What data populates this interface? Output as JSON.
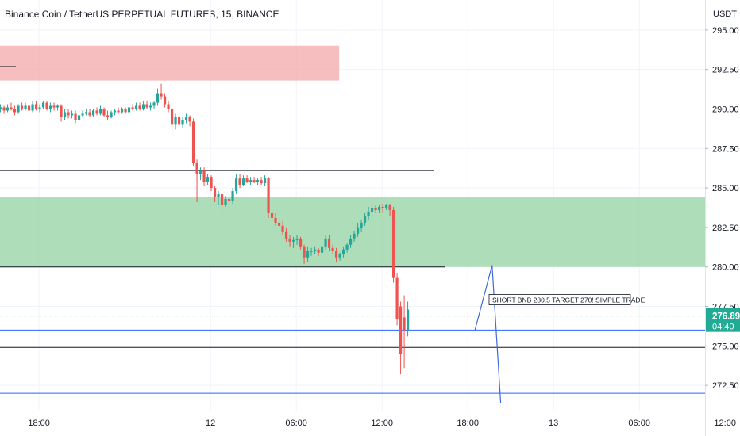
{
  "chart_data": {
    "type": "candlestick",
    "title": "Binance Coin / TetherUS PERPETUAL FUTURES, 15, BINANCE",
    "currency": "USDT",
    "y_ticks": [
      "295.00",
      "292.50",
      "290.00",
      "287.50",
      "285.00",
      "282.50",
      "280.00",
      "277.50",
      "275.00",
      "272.50"
    ],
    "x_ticks": [
      {
        "label": "18:00",
        "hour": 18
      },
      {
        "label": "12",
        "hour": 30
      },
      {
        "label": "06:00",
        "hour": 36
      },
      {
        "label": "12:00",
        "hour": 42
      },
      {
        "label": "18:00",
        "hour": 48
      },
      {
        "label": "13",
        "hour": 54
      },
      {
        "label": "06:00",
        "hour": 60
      },
      {
        "label": "12:00",
        "hour": 66
      }
    ],
    "ylim": [
      270.9,
      296.9
    ],
    "xlim_hours": [
      15.27,
      64.6
    ],
    "last_price": {
      "price": "276.89",
      "countdown": "04:40",
      "value": 276.89,
      "color": "#22ab94"
    },
    "zones": [
      {
        "name": "supply",
        "y_from": 291.8,
        "y_to": 294.0,
        "x_from": 15.27,
        "x_to": 39.0,
        "color": "#f2a5a5"
      },
      {
        "name": "demand",
        "y_from": 280.0,
        "y_to": 284.4,
        "x_from": 15.27,
        "x_to": 64.6,
        "color": "#8fd19e"
      }
    ],
    "levels": [
      {
        "price": 286.1,
        "x_from": 15.27,
        "x_to": 45.6,
        "color": "#131722"
      },
      {
        "price": 280.0,
        "x_from": 15.27,
        "x_to": 46.4,
        "color": "#131722"
      },
      {
        "price": 274.9,
        "x_from": 15.27,
        "x_to": 64.6,
        "color": "#131722"
      },
      {
        "price": 276.0,
        "x_from": 15.27,
        "x_to": 64.6,
        "color": "#2962ff"
      },
      {
        "price": 272.0,
        "x_from": 15.27,
        "x_to": 64.6,
        "color": "#2962ff"
      }
    ],
    "projection": [
      {
        "hour": 48.5,
        "price": 276.0
      },
      {
        "hour": 49.7,
        "price": 280.1
      },
      {
        "hour": 50.3,
        "price": 271.4
      }
    ],
    "annotation": {
      "text": "SHORT BNB 280.5 TARGET 270! SIMPLE TRADE",
      "hour": 49.6,
      "price": 277.9
    },
    "colors": {
      "up": "#26a69a",
      "down": "#ef5350",
      "text": "#131722"
    },
    "candles": [
      [
        15.3,
        290.0,
        290.3,
        289.8,
        290.1
      ],
      [
        15.55,
        290.1,
        290.2,
        289.7,
        289.9
      ],
      [
        15.8,
        289.9,
        290.3,
        289.8,
        290.1
      ],
      [
        16.05,
        290.1,
        290.4,
        289.9,
        290.0
      ],
      [
        16.3,
        290.0,
        290.2,
        289.6,
        289.8
      ],
      [
        16.55,
        289.8,
        290.3,
        289.7,
        290.2
      ],
      [
        16.8,
        290.2,
        290.4,
        289.9,
        290.0
      ],
      [
        17.05,
        290.0,
        290.4,
        289.9,
        290.2
      ],
      [
        17.3,
        290.2,
        290.3,
        289.8,
        289.9
      ],
      [
        17.55,
        289.9,
        290.5,
        289.8,
        290.3
      ],
      [
        17.8,
        290.3,
        290.5,
        289.9,
        290.0
      ],
      [
        18.05,
        290.0,
        290.3,
        289.8,
        290.1
      ],
      [
        18.3,
        290.1,
        290.5,
        290.0,
        290.4
      ],
      [
        18.55,
        290.4,
        290.5,
        289.9,
        290.0
      ],
      [
        18.8,
        290.0,
        290.4,
        289.8,
        290.2
      ],
      [
        19.05,
        290.2,
        290.4,
        289.9,
        290.1
      ],
      [
        19.3,
        290.1,
        290.3,
        289.9,
        290.2
      ],
      [
        19.55,
        290.2,
        290.3,
        289.2,
        289.5
      ],
      [
        19.8,
        289.5,
        290.0,
        289.3,
        289.8
      ],
      [
        20.05,
        289.8,
        290.0,
        289.4,
        289.6
      ],
      [
        20.3,
        289.6,
        289.9,
        289.4,
        289.7
      ],
      [
        20.55,
        289.7,
        289.9,
        289.1,
        289.3
      ],
      [
        20.8,
        289.3,
        289.8,
        289.2,
        289.6
      ],
      [
        21.05,
        289.6,
        289.9,
        289.5,
        289.7
      ],
      [
        21.3,
        289.7,
        290.0,
        289.6,
        289.8
      ],
      [
        21.55,
        289.8,
        290.0,
        289.5,
        289.6
      ],
      [
        21.8,
        289.6,
        290.0,
        289.5,
        289.9
      ],
      [
        22.05,
        289.9,
        290.1,
        289.6,
        289.7
      ],
      [
        22.3,
        289.7,
        290.2,
        289.6,
        290.0
      ],
      [
        22.55,
        290.0,
        290.1,
        289.5,
        289.6
      ],
      [
        22.8,
        289.6,
        289.9,
        289.3,
        289.5
      ],
      [
        23.05,
        289.5,
        289.9,
        289.4,
        289.8
      ],
      [
        23.3,
        289.8,
        290.0,
        289.6,
        289.9
      ],
      [
        23.55,
        289.9,
        290.1,
        289.7,
        289.8
      ],
      [
        23.8,
        289.8,
        290.1,
        289.7,
        290.0
      ],
      [
        24.05,
        290.0,
        290.1,
        289.7,
        289.8
      ],
      [
        24.3,
        289.8,
        290.2,
        289.7,
        290.1
      ],
      [
        24.55,
        290.1,
        290.3,
        289.9,
        290.0
      ],
      [
        24.8,
        290.0,
        290.4,
        289.9,
        290.2
      ],
      [
        25.05,
        290.2,
        290.4,
        289.9,
        290.0
      ],
      [
        25.3,
        290.0,
        290.5,
        289.9,
        290.3
      ],
      [
        25.55,
        290.3,
        290.5,
        290.0,
        290.1
      ],
      [
        25.8,
        290.1,
        290.4,
        289.9,
        290.2
      ],
      [
        26.05,
        290.2,
        290.5,
        290.0,
        290.4
      ],
      [
        26.3,
        290.4,
        291.3,
        290.2,
        291.0
      ],
      [
        26.55,
        291.0,
        291.6,
        290.6,
        290.8
      ],
      [
        26.8,
        290.8,
        291.0,
        290.1,
        290.3
      ],
      [
        27.05,
        290.3,
        290.5,
        289.8,
        290.0
      ],
      [
        27.3,
        290.0,
        290.1,
        288.3,
        289.0
      ],
      [
        27.55,
        289.0,
        289.7,
        288.7,
        289.5
      ],
      [
        27.8,
        289.5,
        289.7,
        288.9,
        289.0
      ],
      [
        28.05,
        289.0,
        289.5,
        288.8,
        289.3
      ],
      [
        28.3,
        289.3,
        289.7,
        289.1,
        289.5
      ],
      [
        28.55,
        289.5,
        289.6,
        288.9,
        289.2
      ],
      [
        28.8,
        289.2,
        289.4,
        286.4,
        286.6
      ],
      [
        29.05,
        286.6,
        286.8,
        284.1,
        285.9
      ],
      [
        29.3,
        285.9,
        286.3,
        285.5,
        286.1
      ],
      [
        29.55,
        286.1,
        286.3,
        285.1,
        285.4
      ],
      [
        29.8,
        285.4,
        285.9,
        285.2,
        285.7
      ],
      [
        30.05,
        285.7,
        285.8,
        284.8,
        285.0
      ],
      [
        30.3,
        285.0,
        285.1,
        284.1,
        284.4
      ],
      [
        30.55,
        284.4,
        284.8,
        283.9,
        284.6
      ],
      [
        30.8,
        284.6,
        284.7,
        283.4,
        283.9
      ],
      [
        31.05,
        283.9,
        284.5,
        283.8,
        284.3
      ],
      [
        31.3,
        284.3,
        284.6,
        284.0,
        284.2
      ],
      [
        31.55,
        284.2,
        285.0,
        284.0,
        284.8
      ],
      [
        31.8,
        284.8,
        285.9,
        284.6,
        285.6
      ],
      [
        32.05,
        285.6,
        285.9,
        285.0,
        285.2
      ],
      [
        32.3,
        285.2,
        285.8,
        285.1,
        285.6
      ],
      [
        32.55,
        285.6,
        285.8,
        285.3,
        285.4
      ],
      [
        32.8,
        285.4,
        285.7,
        285.2,
        285.5
      ],
      [
        33.05,
        285.5,
        285.7,
        285.3,
        285.4
      ],
      [
        33.3,
        285.4,
        285.6,
        285.2,
        285.5
      ],
      [
        33.55,
        285.5,
        285.7,
        285.2,
        285.3
      ],
      [
        33.8,
        285.3,
        285.8,
        285.1,
        285.6
      ],
      [
        34.05,
        285.6,
        285.7,
        283.1,
        283.4
      ],
      [
        34.3,
        283.4,
        283.6,
        282.9,
        283.1
      ],
      [
        34.55,
        283.1,
        283.4,
        282.6,
        282.8
      ],
      [
        34.8,
        282.8,
        283.1,
        282.4,
        282.6
      ],
      [
        35.05,
        282.6,
        282.9,
        282.0,
        282.2
      ],
      [
        35.3,
        282.2,
        282.5,
        281.6,
        281.8
      ],
      [
        35.55,
        281.8,
        282.0,
        281.3,
        281.6
      ],
      [
        35.8,
        281.6,
        281.9,
        281.2,
        281.7
      ],
      [
        36.05,
        281.7,
        282.0,
        281.4,
        281.8
      ],
      [
        36.3,
        281.8,
        281.9,
        281.1,
        281.3
      ],
      [
        36.55,
        281.3,
        281.4,
        280.2,
        280.6
      ],
      [
        36.8,
        280.6,
        281.3,
        280.3,
        281.0
      ],
      [
        37.05,
        281.0,
        281.2,
        280.7,
        281.0
      ],
      [
        37.3,
        281.0,
        281.3,
        280.8,
        281.1
      ],
      [
        37.55,
        281.1,
        281.2,
        280.7,
        280.9
      ],
      [
        37.8,
        280.9,
        281.5,
        280.8,
        281.3
      ],
      [
        38.05,
        281.3,
        282.0,
        281.1,
        281.8
      ],
      [
        38.3,
        281.8,
        282.0,
        281.0,
        281.2
      ],
      [
        38.55,
        281.2,
        281.4,
        280.8,
        281.0
      ],
      [
        38.8,
        281.0,
        281.2,
        280.3,
        280.6
      ],
      [
        39.05,
        280.6,
        280.9,
        280.4,
        280.8
      ],
      [
        39.3,
        280.8,
        281.3,
        280.6,
        281.1
      ],
      [
        39.55,
        281.1,
        281.5,
        280.9,
        281.4
      ],
      [
        39.8,
        281.4,
        282.0,
        281.2,
        281.8
      ],
      [
        40.05,
        281.8,
        282.3,
        281.6,
        282.1
      ],
      [
        40.3,
        282.1,
        282.8,
        281.9,
        282.5
      ],
      [
        40.55,
        282.5,
        283.0,
        282.2,
        282.8
      ],
      [
        40.8,
        282.8,
        283.4,
        282.6,
        283.2
      ],
      [
        41.05,
        283.2,
        283.8,
        283.0,
        283.5
      ],
      [
        41.3,
        283.5,
        283.9,
        283.2,
        283.7
      ],
      [
        41.55,
        283.7,
        283.9,
        283.4,
        283.6
      ],
      [
        41.8,
        283.6,
        283.9,
        283.4,
        283.8
      ],
      [
        42.05,
        283.8,
        284.0,
        283.4,
        283.7
      ],
      [
        42.3,
        283.7,
        284.0,
        283.6,
        283.9
      ],
      [
        42.55,
        283.9,
        284.0,
        283.2,
        283.6
      ],
      [
        42.8,
        283.6,
        283.8,
        279.0,
        279.3
      ],
      [
        43.05,
        279.3,
        279.6,
        276.3,
        276.7
      ],
      [
        43.3,
        277.5,
        277.8,
        273.2,
        274.5
      ],
      [
        43.55,
        276.8,
        278.2,
        273.6,
        276.0
      ],
      [
        43.8,
        276.0,
        277.8,
        275.6,
        277.3
      ]
    ]
  }
}
